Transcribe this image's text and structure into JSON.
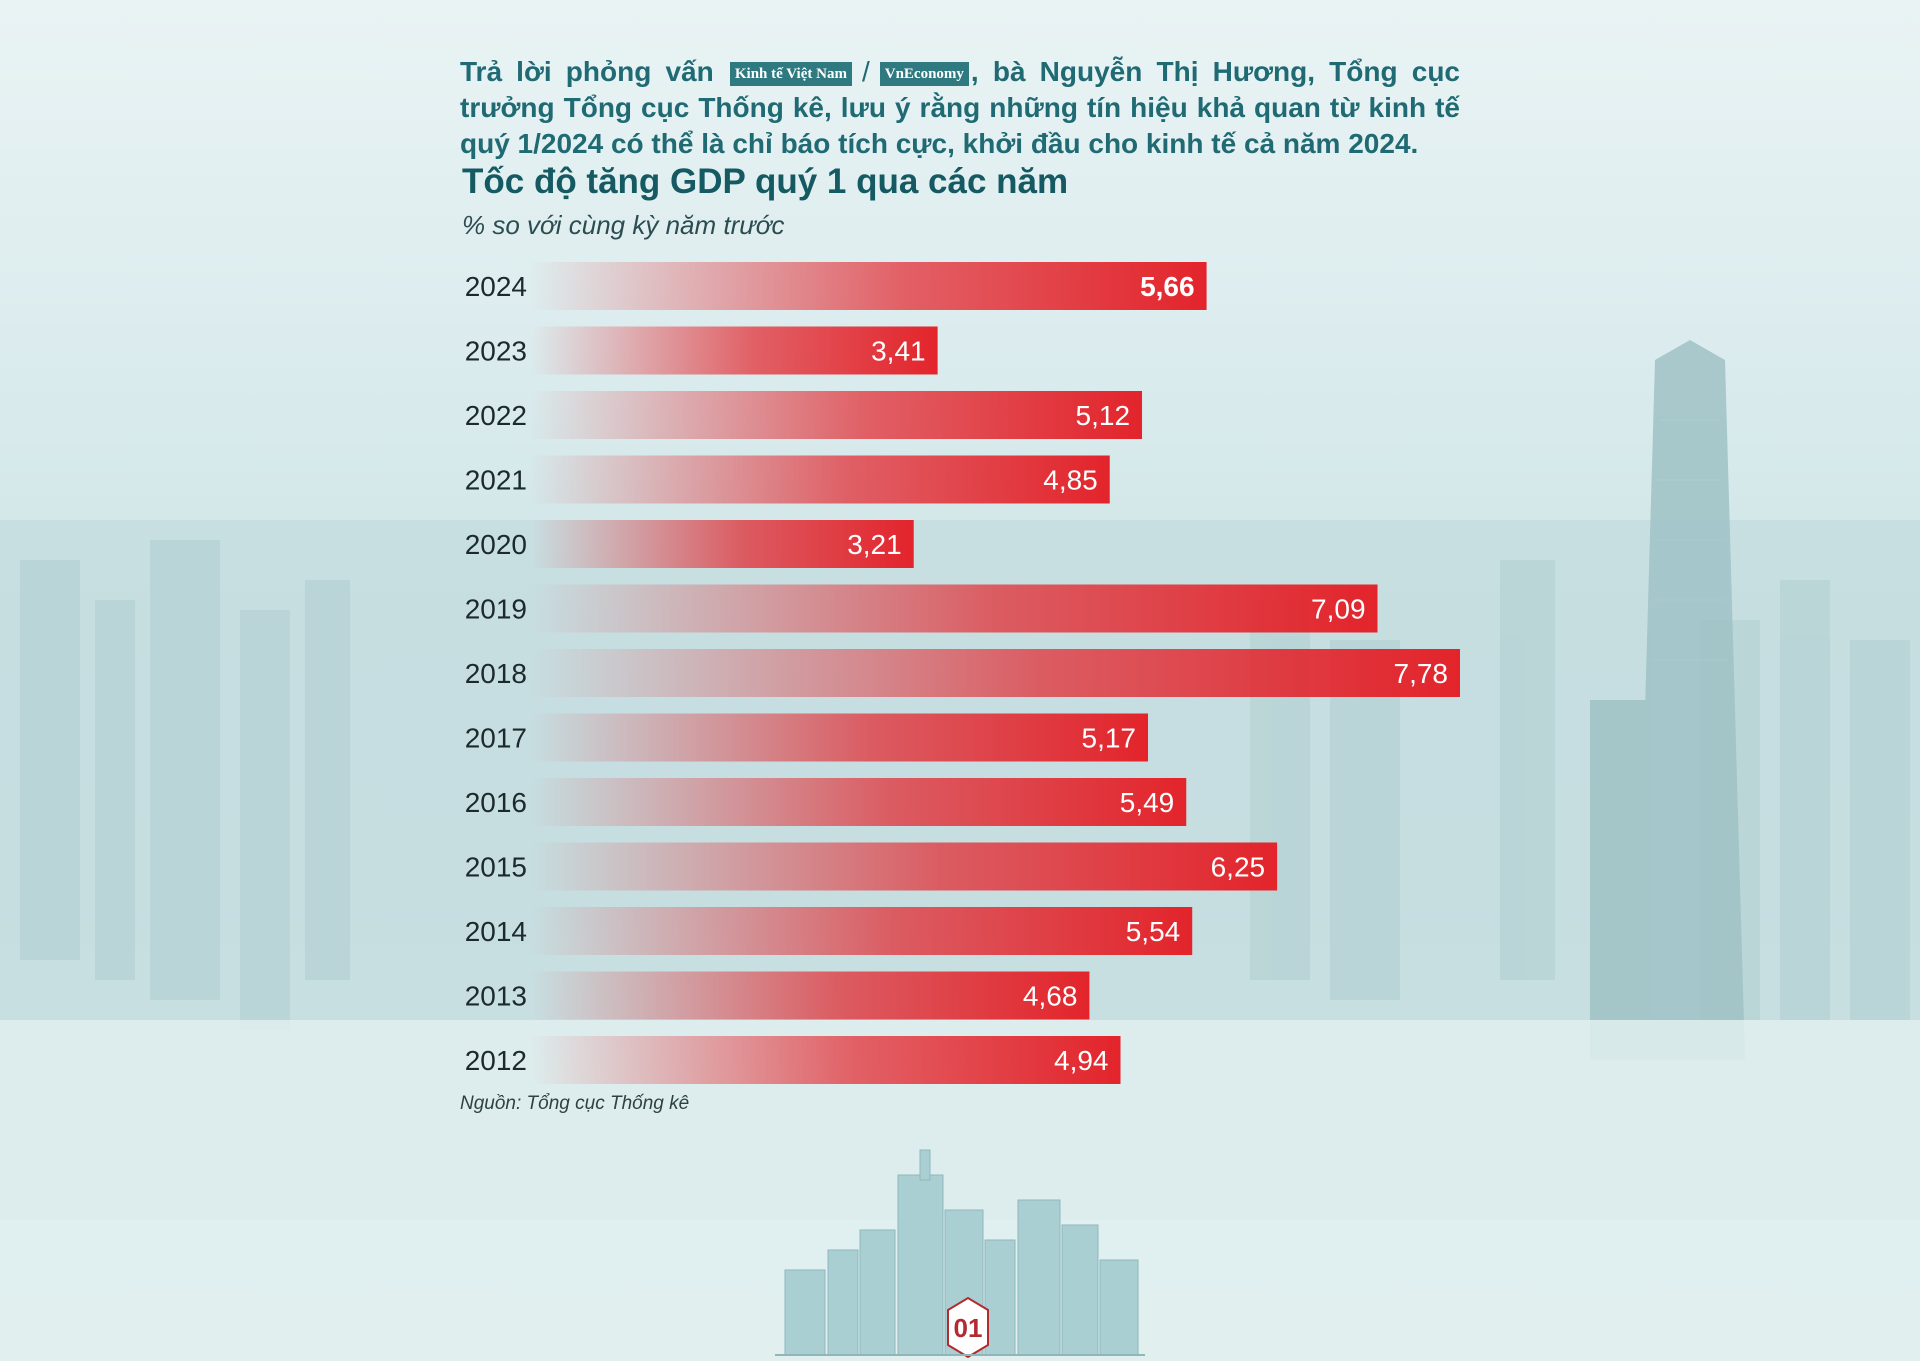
{
  "intro": {
    "text_before_logo": "Trả lời phỏng vấn",
    "logo_left": "Kinh tế Việt Nam",
    "separator": "/",
    "logo_right": "VnEconomy",
    "text_after_logo": ", bà Nguyễn Thị Hương, Tổng cục trưởng Tổng cục Thống kê, lưu ý rằng những tín hiệu khả quan từ kinh tế quý 1/2024 có thể là chỉ báo tích cực, khởi đầu cho kinh tế cả năm 2024."
  },
  "chart_data": {
    "type": "bar",
    "orientation": "horizontal",
    "title": "Tốc độ tăng GDP quý 1 qua các năm",
    "subtitle": "% so với cùng kỳ năm trước",
    "categories": [
      "2024",
      "2023",
      "2022",
      "2021",
      "2020",
      "2019",
      "2018",
      "2017",
      "2016",
      "2015",
      "2014",
      "2013",
      "2012"
    ],
    "values": [
      5.66,
      3.41,
      5.12,
      4.85,
      3.21,
      7.09,
      7.78,
      5.17,
      5.49,
      6.25,
      5.54,
      4.68,
      4.94
    ],
    "value_labels": [
      "5,66",
      "3,41",
      "5,12",
      "4,85",
      "3,21",
      "7,09",
      "7,78",
      "5,17",
      "5,49",
      "6,25",
      "5,54",
      "4,68",
      "4,94"
    ],
    "highlight_category": "2024",
    "xlim": [
      0,
      7.78
    ],
    "grid": false,
    "legend": "none",
    "bar_color": "#e3242b"
  },
  "source": "Nguồn: Tổng cục Thống kê",
  "page_badge": "01"
}
